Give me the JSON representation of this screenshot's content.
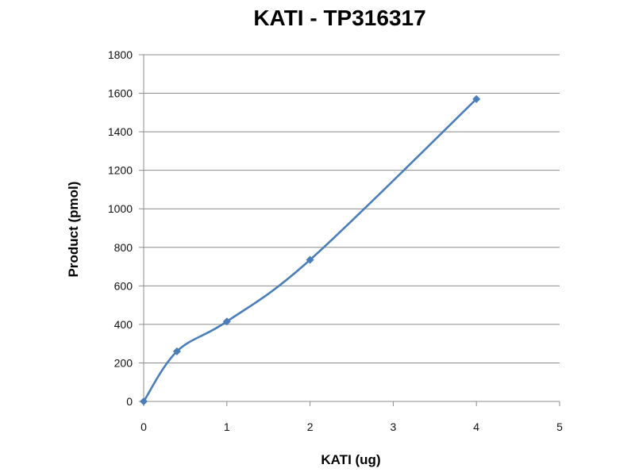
{
  "chart_data": {
    "type": "line",
    "title": "KATI - TP316317",
    "xlabel": "KATI (ug)",
    "ylabel": "Product (pmol)",
    "xlim": [
      0,
      5
    ],
    "ylim": [
      0,
      1800
    ],
    "x_ticks": [
      0,
      1,
      2,
      3,
      4,
      5
    ],
    "y_ticks": [
      0,
      200,
      400,
      600,
      800,
      1000,
      1200,
      1400,
      1600,
      1800
    ],
    "grid": true,
    "legend": "none",
    "line_color": "#4a7ebb",
    "series": [
      {
        "x": [
          0,
          0.4,
          1,
          2,
          4
        ],
        "y": [
          0,
          260,
          415,
          735,
          1570
        ]
      }
    ]
  }
}
